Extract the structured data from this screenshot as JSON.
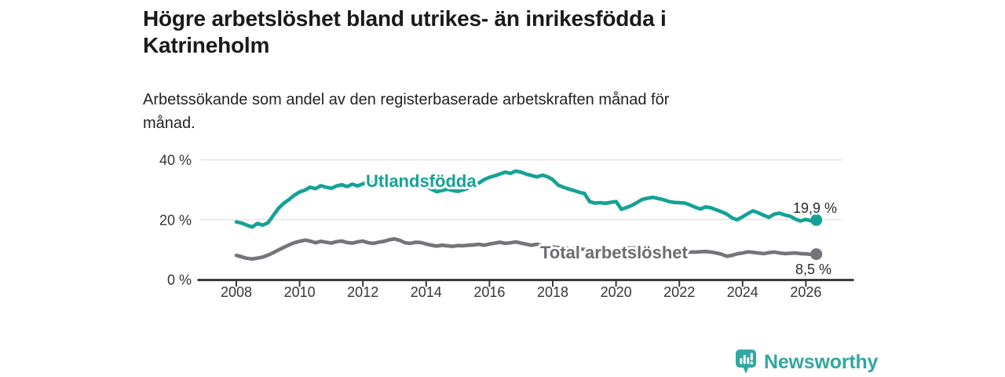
{
  "header": {
    "title_lines": [
      "Högre arbetslöshet bland utrikes- än inrikesfödda i",
      "Katrineholm"
    ],
    "subtitle_lines": [
      "Arbetssökande som andel av den registerbaserade arbetskraften månad för",
      "månad."
    ]
  },
  "footer": {
    "brand": "Newsworthy",
    "logo_color": "#32a6a0",
    "logo_icon": "bar-chart-speech-bubble"
  },
  "chart_data": {
    "type": "line",
    "title": "Högre arbetslöshet bland utrikes- än inrikesfödda i Katrineholm",
    "subtitle": "Arbetssökande som andel av den registerbaserade arbetskraften månad för månad.",
    "grid": "horizontal-only",
    "legend_position": "inline-labels",
    "x_axis": {
      "min": 2007.4,
      "max": 2027.5,
      "ticks": [
        2008,
        2010,
        2012,
        2014,
        2016,
        2018,
        2020,
        2022,
        2024,
        2026
      ]
    },
    "y_axis": {
      "min": 0,
      "max": 42,
      "ticks": [
        {
          "value": 0,
          "label": "0 %"
        },
        {
          "value": 20,
          "label": "20 %"
        },
        {
          "value": 40,
          "label": "40 %"
        }
      ]
    },
    "x": [
      2008.0,
      2008.17,
      2008.33,
      2008.5,
      2008.67,
      2008.83,
      2009.0,
      2009.17,
      2009.33,
      2009.5,
      2009.67,
      2009.83,
      2010.0,
      2010.17,
      2010.33,
      2010.5,
      2010.67,
      2010.83,
      2011.0,
      2011.17,
      2011.33,
      2011.5,
      2011.67,
      2011.83,
      2012.0,
      2012.17,
      2012.33,
      2012.5,
      2012.67,
      2012.83,
      2013.0,
      2013.17,
      2013.33,
      2013.5,
      2013.67,
      2013.83,
      2014.0,
      2014.17,
      2014.33,
      2014.5,
      2014.67,
      2014.83,
      2015.0,
      2015.17,
      2015.33,
      2015.5,
      2015.67,
      2015.83,
      2016.0,
      2016.17,
      2016.33,
      2016.5,
      2016.67,
      2016.83,
      2017.0,
      2017.17,
      2017.33,
      2017.5,
      2017.67,
      2017.83,
      2018.0,
      2018.17,
      2018.33,
      2018.5,
      2018.67,
      2018.83,
      2019.0,
      2019.17,
      2019.33,
      2019.5,
      2019.67,
      2019.83,
      2020.0,
      2020.17,
      2020.33,
      2020.5,
      2020.67,
      2020.83,
      2021.0,
      2021.17,
      2021.33,
      2021.5,
      2021.67,
      2021.83,
      2022.0,
      2022.17,
      2022.33,
      2022.5,
      2022.67,
      2022.83,
      2023.0,
      2023.17,
      2023.33,
      2023.5,
      2023.67,
      2023.83,
      2024.0,
      2024.17,
      2024.33,
      2024.5,
      2024.67,
      2024.83,
      2025.0,
      2025.17,
      2025.33,
      2025.5,
      2025.67,
      2025.83,
      2026.0,
      2026.17,
      2026.33
    ],
    "series": [
      {
        "name": "Utlandsfödda",
        "color": "#15a296",
        "end_label": "19,9 %",
        "end_value": 19.9,
        "values": [
          19.3,
          18.9,
          18.2,
          17.6,
          18.8,
          18.2,
          19.0,
          21.5,
          23.8,
          25.5,
          26.8,
          28.2,
          29.3,
          29.9,
          30.9,
          30.4,
          31.4,
          30.9,
          30.5,
          31.3,
          31.7,
          31.1,
          31.9,
          31.3,
          32.0,
          32.8,
          32.2,
          33.0,
          32.2,
          31.6,
          32.2,
          32.7,
          33.1,
          32.4,
          31.6,
          32.0,
          31.2,
          30.2,
          29.4,
          29.8,
          30.3,
          29.8,
          29.5,
          30.0,
          30.6,
          31.4,
          32.3,
          33.4,
          34.2,
          34.7,
          35.3,
          35.9,
          35.5,
          36.3,
          35.9,
          35.2,
          34.8,
          34.3,
          34.9,
          34.4,
          33.4,
          31.6,
          30.9,
          30.3,
          29.8,
          29.2,
          28.8,
          26.0,
          25.6,
          25.7,
          25.5,
          25.8,
          26.1,
          23.5,
          24.1,
          24.8,
          25.8,
          26.8,
          27.2,
          27.5,
          27.1,
          26.7,
          26.1,
          25.8,
          25.7,
          25.6,
          25.0,
          24.2,
          23.6,
          24.3,
          24.0,
          23.3,
          22.7,
          21.9,
          20.6,
          20.0,
          21.0,
          22.1,
          23.0,
          22.3,
          21.5,
          20.8,
          21.9,
          22.2,
          21.6,
          21.2,
          20.2,
          19.6,
          20.1,
          19.6,
          19.9
        ]
      },
      {
        "name": "Total arbetslöshet",
        "color": "#74747a",
        "label_color": "#6c6c71",
        "end_label": "8,5 %",
        "end_value": 8.5,
        "values": [
          8.1,
          7.6,
          7.1,
          6.9,
          7.2,
          7.5,
          8.2,
          9.0,
          9.9,
          10.8,
          11.6,
          12.3,
          12.8,
          13.2,
          12.9,
          12.3,
          12.8,
          12.5,
          12.2,
          12.7,
          12.9,
          12.4,
          12.2,
          12.6,
          12.9,
          12.3,
          12.1,
          12.5,
          12.8,
          13.3,
          13.6,
          13.1,
          12.3,
          12.1,
          12.5,
          12.4,
          11.9,
          11.5,
          11.2,
          11.5,
          11.3,
          11.1,
          11.4,
          11.3,
          11.5,
          11.6,
          11.8,
          11.5,
          11.9,
          12.2,
          12.5,
          12.1,
          12.3,
          12.6,
          12.2,
          11.8,
          11.5,
          11.8,
          11.4,
          11.1,
          10.9,
          10.7,
          10.6,
          10.4,
          10.3,
          10.2,
          10.1,
          9.9,
          9.8,
          9.7,
          9.7,
          9.8,
          9.9,
          10.2,
          10.5,
          10.6,
          10.5,
          10.3,
          10.2,
          10.0,
          9.9,
          9.7,
          9.6,
          9.5,
          9.4,
          9.3,
          9.2,
          9.2,
          9.3,
          9.4,
          9.2,
          8.9,
          8.5,
          7.8,
          8.1,
          8.6,
          8.9,
          9.3,
          9.1,
          8.9,
          8.7,
          9.0,
          9.2,
          8.9,
          8.7,
          8.8,
          8.9,
          8.7,
          8.6,
          8.4,
          8.5
        ]
      }
    ]
  }
}
